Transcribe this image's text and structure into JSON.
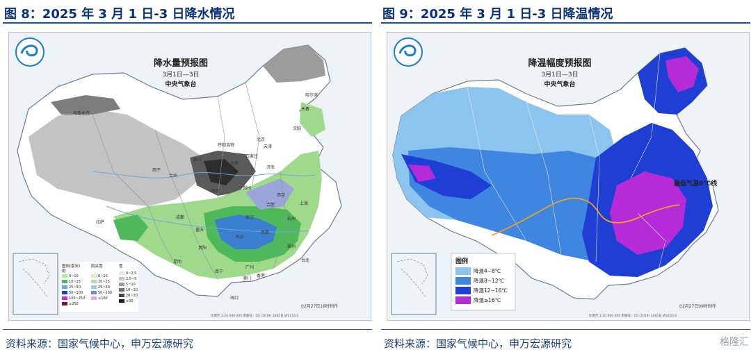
{
  "left": {
    "figure_title": "图 8：2025 年 3 月 1 日-3 日降水情况",
    "map_title": "降水量预报图",
    "map_date": "3月1日—3日",
    "map_org": "中央气象台",
    "legend": {
      "header_rain": "图例(毫米)",
      "header_rain_sub": "雨",
      "header_mix": "雨夹雪",
      "header_snow": "雪",
      "rain_items": [
        "0~10",
        "10~25",
        "25~50",
        "50~100",
        "100~250",
        "≥250"
      ],
      "mix_items": [
        "0~10",
        "10~25",
        "25~50",
        "50~100",
        "≥100"
      ],
      "snow_items": [
        "0~2.5",
        "2.5~5",
        "5~10",
        "10~20",
        "20~30",
        "≥30"
      ]
    },
    "stamp": "02月27日16时制作",
    "scale": "比例尺 1:20 000 000  审图号：GS (2019) 3082号 WS153.0",
    "cities": [
      "哈尔滨",
      "长春",
      "沈阳",
      "乌鲁木齐",
      "呼和浩特",
      "北京",
      "天津",
      "石家庄",
      "太原",
      "济南",
      "银川",
      "兰州",
      "西宁",
      "郑州",
      "西安",
      "南京",
      "合肥",
      "上海",
      "拉萨",
      "成都",
      "重庆",
      "武汉",
      "杭州",
      "长沙",
      "南昌",
      "福州",
      "贵阳",
      "昆明",
      "广州",
      "南宁",
      "海口",
      "台北",
      "香港",
      "澳门"
    ]
  },
  "right": {
    "figure_title": "图 9：2025 年 3 月 1 日-3 日降温情况",
    "map_title": "降温幅度预报图",
    "map_date": "3月1日—3日",
    "map_org": "中央气象台",
    "annotation": "最低气温0℃线",
    "legend": {
      "header": "图例",
      "items": [
        {
          "label": "降温4~8℃",
          "color": "#8cc4f0"
        },
        {
          "label": "降温8~12℃",
          "color": "#3e86e0"
        },
        {
          "label": "降温12~16℃",
          "color": "#1f3fd4"
        },
        {
          "label": "降温≥16℃",
          "color": "#b52bd8"
        }
      ]
    },
    "stamp": "02月27日09时制作",
    "scale": "比例尺 1:20 000 000  审图号：GS (2019) 3082号 WS153.0"
  },
  "source": "资料来源：国家气候中心，申万宏源研究",
  "watermark": "格隆汇"
}
